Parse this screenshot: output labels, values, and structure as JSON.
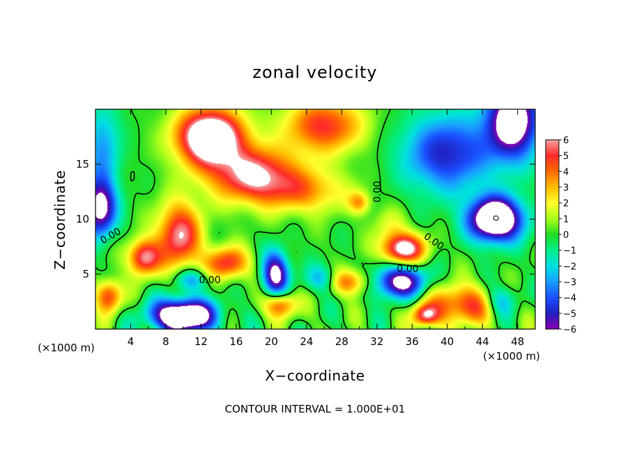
{
  "chart_data": {
    "type": "heatmap",
    "title": "zonal velocity",
    "xlabel": "X−coordinate",
    "ylabel": "Z−coordinate",
    "x_unit": "(×1000 m)",
    "y_unit": "(×1000 m)",
    "xlim": [
      0,
      50
    ],
    "ylim": [
      0,
      20
    ],
    "x_ticks": [
      4,
      8,
      12,
      16,
      20,
      24,
      28,
      32,
      36,
      40,
      44,
      48
    ],
    "y_ticks": [
      5,
      10,
      15
    ],
    "x_tick_labels": [
      "4",
      "8",
      "12",
      "16",
      "20",
      "24",
      "28",
      "32",
      "36",
      "40",
      "44",
      "48"
    ],
    "y_tick_labels": [
      "5",
      "10",
      "15"
    ],
    "colorbar": {
      "range": [
        -6,
        6
      ],
      "ticks": [
        6,
        5,
        4,
        3,
        2,
        1,
        0,
        -1,
        -2,
        -3,
        -4,
        -5,
        -6
      ],
      "tick_labels": [
        "6",
        "5",
        "4",
        "3",
        "2",
        "1",
        "0",
        "−1",
        "−2",
        "−3",
        "−4",
        "−5",
        "−6"
      ],
      "colors": [
        "#f4a0a0",
        "#ff2a2a",
        "#ff6a00",
        "#ffbb00",
        "#ffff2a",
        "#aaff1a",
        "#22dd22",
        "#00ee88",
        "#00e0e0",
        "#1a9fff",
        "#1a4fff",
        "#2020c0",
        "#8a00b0"
      ],
      "saturated_color": "#ffffff"
    },
    "contour_labels": [
      "0.00",
      "0.00",
      "0.00",
      "0.00",
      "0.00"
    ],
    "footer": "CONTOUR INTERVAL = 1.000E+01",
    "blobs": [
      {
        "x": 13,
        "z": 17.5,
        "sx": 3.8,
        "sz": 2.6,
        "amp": 9
      },
      {
        "x": 18,
        "z": 14,
        "sx": 5,
        "sz": 2.5,
        "amp": 6
      },
      {
        "x": 26,
        "z": 18.5,
        "sx": 4.5,
        "sz": 2.5,
        "amp": 5
      },
      {
        "x": 9.5,
        "z": 8.5,
        "sx": 2.5,
        "sz": 3,
        "amp": 6
      },
      {
        "x": 5.5,
        "z": 6.5,
        "sx": 1.8,
        "sz": 1.6,
        "amp": 6
      },
      {
        "x": 15,
        "z": 6,
        "sx": 2.5,
        "sz": 1.5,
        "amp": 5
      },
      {
        "x": 24,
        "z": 12.5,
        "sx": 5,
        "sz": 2,
        "amp": 3
      },
      {
        "x": 30,
        "z": 11.5,
        "sx": 1.2,
        "sz": 1,
        "amp": 3
      },
      {
        "x": 21,
        "z": 2.2,
        "sx": 1.8,
        "sz": 1.2,
        "amp": 5
      },
      {
        "x": 35,
        "z": 7.3,
        "sx": 2.5,
        "sz": 1.4,
        "amp": 7
      },
      {
        "x": 28.5,
        "z": 4.3,
        "sx": 3,
        "sz": 1.2,
        "amp": 4.5
      },
      {
        "x": 42,
        "z": 2.2,
        "sx": 4.5,
        "sz": 1.8,
        "amp": 5
      },
      {
        "x": 37.5,
        "z": 1.2,
        "sx": 1.5,
        "sz": 1,
        "amp": 5
      },
      {
        "x": 47.5,
        "z": 19,
        "sx": 3,
        "sz": 3.5,
        "amp": -8
      },
      {
        "x": 45.5,
        "z": 10,
        "sx": 3,
        "sz": 2,
        "amp": -10
      },
      {
        "x": 40,
        "z": 16,
        "sx": 5,
        "sz": 3.5,
        "amp": -5
      },
      {
        "x": 10,
        "z": 1.2,
        "sx": 3.5,
        "sz": 1.5,
        "amp": -10
      },
      {
        "x": 0.5,
        "z": 11,
        "sx": 1.8,
        "sz": 2.5,
        "amp": -7
      },
      {
        "x": 0.8,
        "z": 16.5,
        "sx": 2,
        "sz": 4,
        "amp": -3
      },
      {
        "x": 1.5,
        "z": 3,
        "sx": 1.5,
        "sz": 1.5,
        "amp": 5
      },
      {
        "x": 20.5,
        "z": 5,
        "sx": 1.5,
        "sz": 2,
        "amp": -7
      },
      {
        "x": 34.5,
        "z": 4.3,
        "sx": 3,
        "sz": 1.5,
        "amp": -7
      },
      {
        "x": 26,
        "z": 4.5,
        "sx": 2,
        "sz": 1.2,
        "amp": -4
      },
      {
        "x": 11,
        "z": 4.5,
        "sx": 2,
        "sz": 1,
        "amp": -3
      },
      {
        "x": 46,
        "z": 2.5,
        "sx": 2,
        "sz": 1.5,
        "amp": -4
      },
      {
        "x": 33.5,
        "z": 9.5,
        "sx": 2,
        "sz": 1.5,
        "amp": 1.5
      }
    ]
  }
}
